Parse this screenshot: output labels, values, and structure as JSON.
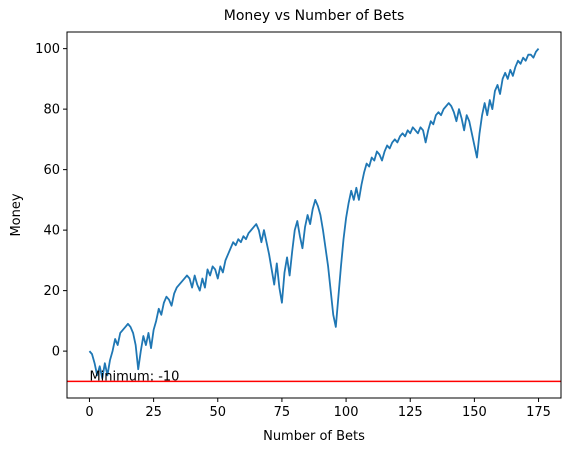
{
  "chart_data": {
    "type": "line",
    "title": "Money vs Number of Bets",
    "xlabel": "Number of Bets",
    "ylabel": "Money",
    "x": [
      0,
      1,
      2,
      3,
      4,
      5,
      6,
      7,
      8,
      9,
      10,
      11,
      12,
      13,
      14,
      15,
      16,
      17,
      18,
      19,
      20,
      21,
      22,
      23,
      24,
      25,
      26,
      27,
      28,
      29,
      30,
      31,
      32,
      33,
      34,
      35,
      36,
      37,
      38,
      39,
      40,
      41,
      42,
      43,
      44,
      45,
      46,
      47,
      48,
      49,
      50,
      51,
      52,
      53,
      54,
      55,
      56,
      57,
      58,
      59,
      60,
      61,
      62,
      63,
      64,
      65,
      66,
      67,
      68,
      69,
      70,
      71,
      72,
      73,
      74,
      75,
      76,
      77,
      78,
      79,
      80,
      81,
      82,
      83,
      84,
      85,
      86,
      87,
      88,
      89,
      90,
      91,
      92,
      93,
      94,
      95,
      96,
      97,
      98,
      99,
      100,
      101,
      102,
      103,
      104,
      105,
      106,
      107,
      108,
      109,
      110,
      111,
      112,
      113,
      114,
      115,
      116,
      117,
      118,
      119,
      120,
      121,
      122,
      123,
      124,
      125,
      126,
      127,
      128,
      129,
      130,
      131,
      132,
      133,
      134,
      135,
      136,
      137,
      138,
      139,
      140,
      141,
      142,
      143,
      144,
      145,
      146,
      147,
      148,
      149,
      150,
      151,
      152,
      153,
      154,
      155,
      156,
      157,
      158,
      159,
      160,
      161,
      162,
      163,
      164,
      165,
      166,
      167,
      168,
      169,
      170,
      171,
      172,
      173,
      174,
      175
    ],
    "values": [
      0,
      -1,
      -4,
      -8,
      -5,
      -9,
      -4,
      -8,
      -3,
      0,
      4,
      2,
      6,
      7,
      8,
      9,
      8,
      6,
      2,
      -6,
      0,
      5,
      2,
      6,
      1,
      7,
      10,
      14,
      12,
      16,
      18,
      17,
      15,
      19,
      21,
      22,
      23,
      24,
      25,
      24,
      21,
      25,
      22,
      20,
      24,
      21,
      27,
      25,
      28,
      27,
      24,
      28,
      26,
      30,
      32,
      34,
      36,
      35,
      37,
      36,
      38,
      37,
      39,
      40,
      41,
      42,
      40,
      36,
      40,
      36,
      32,
      27,
      22,
      29,
      21,
      16,
      26,
      31,
      25,
      33,
      40,
      43,
      38,
      34,
      41,
      45,
      42,
      47,
      50,
      48,
      45,
      40,
      34,
      28,
      20,
      12,
      8,
      18,
      28,
      37,
      44,
      49,
      53,
      50,
      54,
      50,
      55,
      59,
      62,
      61,
      64,
      63,
      66,
      65,
      63,
      66,
      68,
      67,
      69,
      70,
      69,
      71,
      72,
      71,
      73,
      72,
      74,
      73,
      72,
      74,
      73,
      69,
      73,
      76,
      75,
      78,
      79,
      78,
      80,
      81,
      82,
      81,
      79,
      76,
      80,
      77,
      73,
      78,
      76,
      72,
      68,
      64,
      72,
      78,
      82,
      78,
      83,
      80,
      86,
      88,
      85,
      90,
      92,
      90,
      93,
      91,
      94,
      96,
      95,
      97,
      96,
      98,
      98,
      97,
      99,
      100
    ],
    "color": "#1f77b4",
    "hline": {
      "y": -10,
      "color": "#ff0000"
    },
    "annotation": "Minimum: -10",
    "xlim": [
      -8.75,
      183.75
    ],
    "ylim": [
      -15.5,
      105.5
    ],
    "xticks": [
      0,
      25,
      50,
      75,
      100,
      125,
      150,
      175
    ],
    "yticks": [
      0,
      20,
      40,
      60,
      80,
      100
    ]
  }
}
